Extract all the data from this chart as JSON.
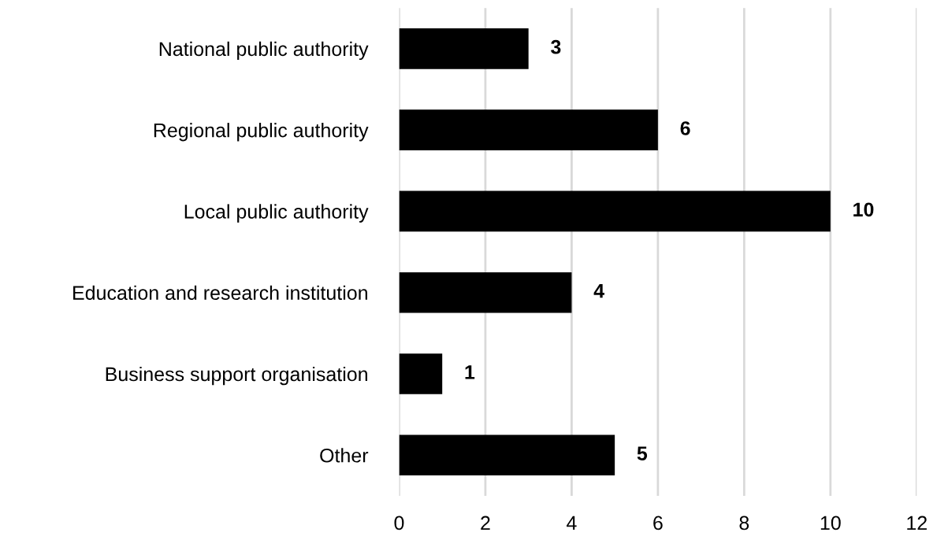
{
  "chart_data": {
    "type": "bar",
    "orientation": "horizontal",
    "categories": [
      "National public authority",
      "Regional public authority",
      "Local public authority",
      "Education and research institution",
      "Business support organisation",
      "Other"
    ],
    "values": [
      3,
      6,
      10,
      4,
      1,
      5
    ],
    "color": "#000000",
    "xlim": [
      0,
      12
    ],
    "xticks": [
      0,
      2,
      4,
      6,
      8,
      10,
      12
    ],
    "grid": "x",
    "data_labels": true
  }
}
